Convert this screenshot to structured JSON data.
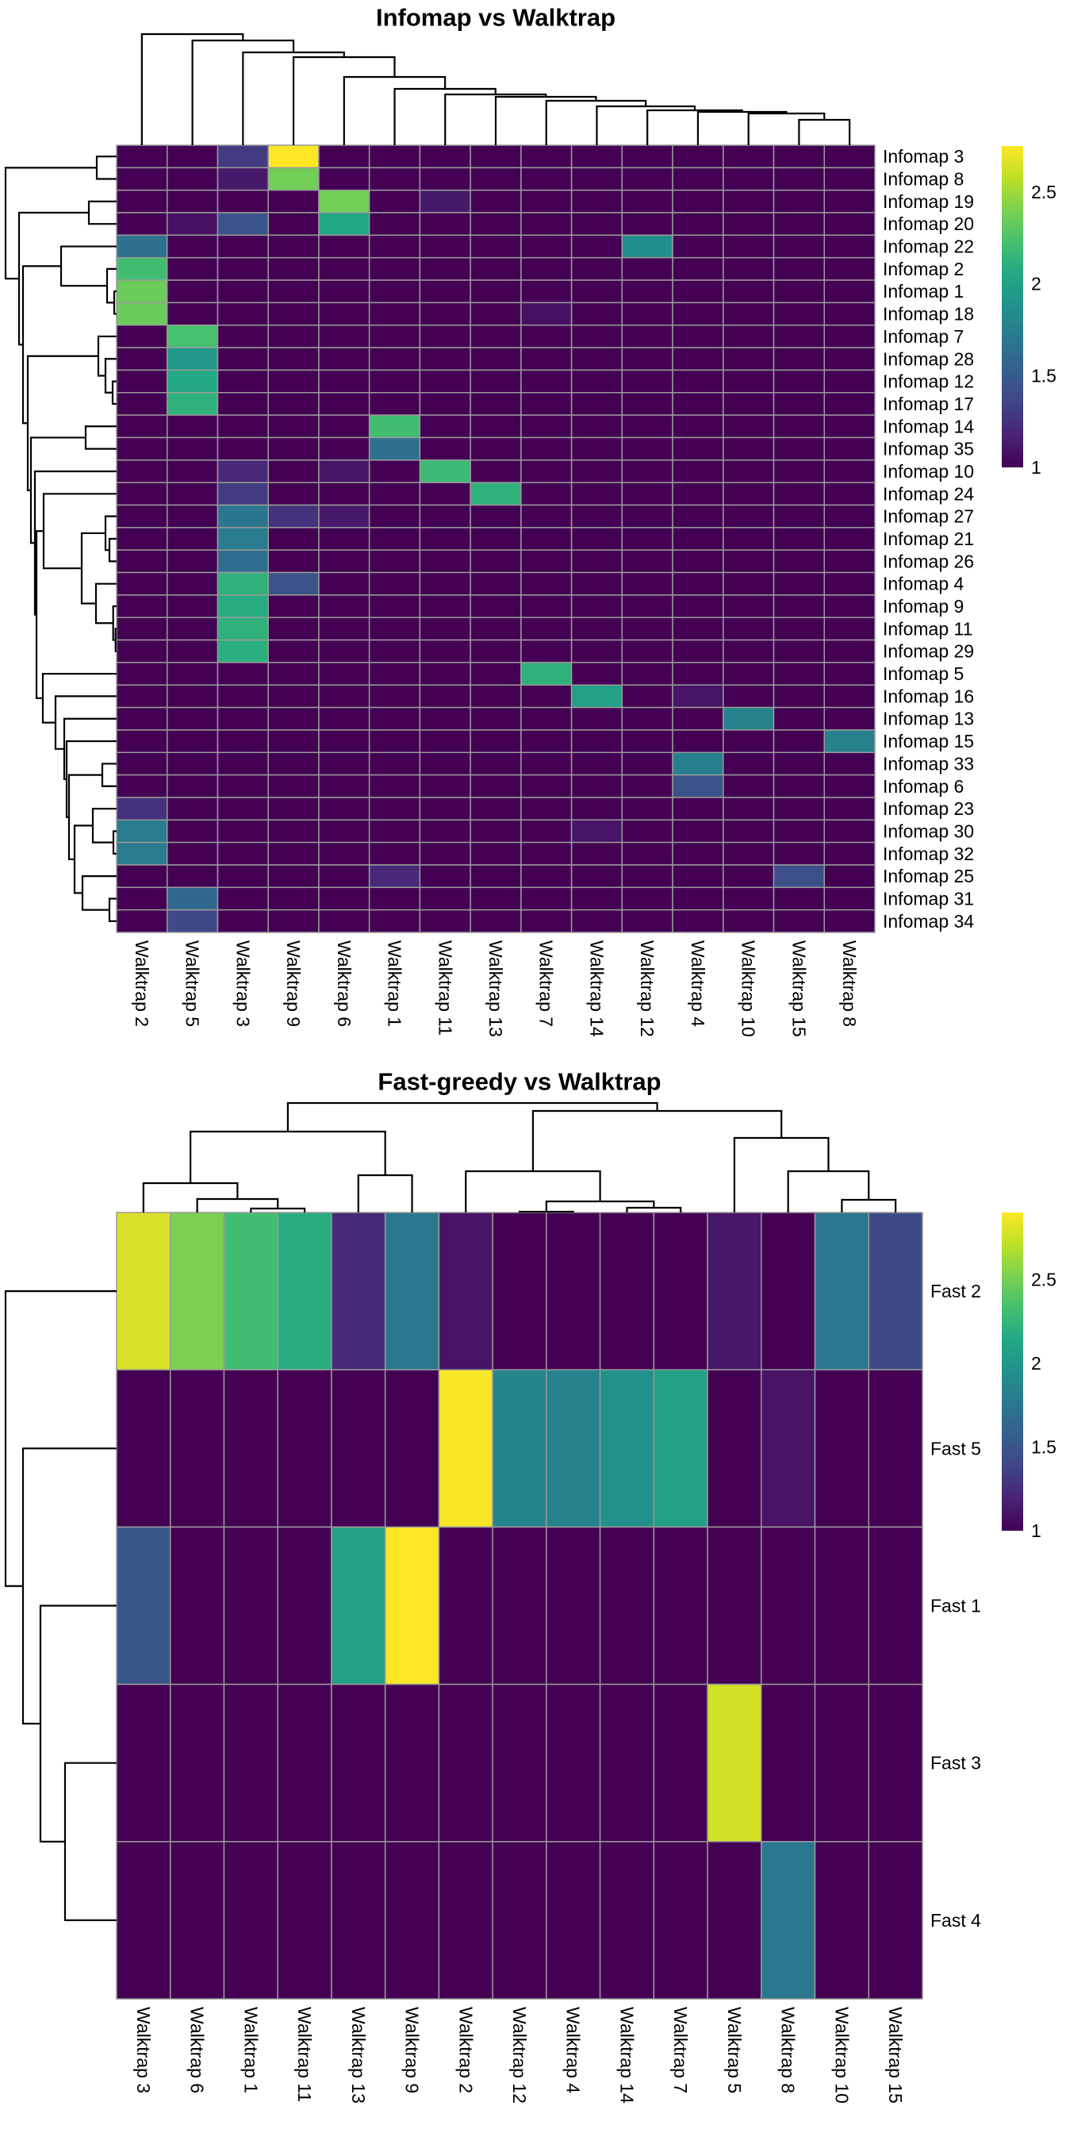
{
  "chart_data": [
    {
      "type": "heatmap",
      "title": "Infomap vs Walktrap",
      "rows": [
        "Infomap 3",
        "Infomap 8",
        "Infomap 19",
        "Infomap 20",
        "Infomap 22",
        "Infomap 2",
        "Infomap 1",
        "Infomap 18",
        "Infomap 7",
        "Infomap 28",
        "Infomap 12",
        "Infomap 17",
        "Infomap 14",
        "Infomap 35",
        "Infomap 10",
        "Infomap 24",
        "Infomap 27",
        "Infomap 21",
        "Infomap 26",
        "Infomap 4",
        "Infomap 9",
        "Infomap 11",
        "Infomap 29",
        "Infomap 5",
        "Infomap 16",
        "Infomap 13",
        "Infomap 15",
        "Infomap 33",
        "Infomap 6",
        "Infomap 23",
        "Infomap 30",
        "Infomap 32",
        "Infomap 25",
        "Infomap 31",
        "Infomap 34"
      ],
      "cols": [
        "Walktrap 2",
        "Walktrap 5",
        "Walktrap 3",
        "Walktrap 9",
        "Walktrap 6",
        "Walktrap 1",
        "Walktrap 11",
        "Walktrap 13",
        "Walktrap 7",
        "Walktrap 14",
        "Walktrap 12",
        "Walktrap 4",
        "Walktrap 10",
        "Walktrap 15",
        "Walktrap 8"
      ],
      "values": [
        [
          1,
          1,
          1.3,
          2.75,
          1,
          1,
          1,
          1,
          1,
          1,
          1,
          1,
          1,
          1,
          1
        ],
        [
          1,
          1,
          1.12,
          2.37,
          1,
          1,
          1,
          1,
          1,
          1,
          1,
          1,
          1,
          1,
          1
        ],
        [
          1,
          1,
          1,
          1,
          2.37,
          1,
          1.12,
          1,
          1,
          1,
          1,
          1,
          1,
          1,
          1
        ],
        [
          1,
          1.08,
          1.45,
          1,
          2.05,
          1,
          1,
          1,
          1,
          1,
          1,
          1,
          1,
          1,
          1
        ],
        [
          1.65,
          1,
          1,
          1,
          1,
          1,
          1,
          1,
          1,
          1,
          1.87,
          1,
          1,
          1,
          1
        ],
        [
          2.21,
          1,
          1,
          1,
          1,
          1,
          1,
          1,
          1,
          1,
          1,
          1,
          1,
          1,
          1
        ],
        [
          2.35,
          1,
          1,
          1,
          1,
          1,
          1,
          1,
          1,
          1,
          1,
          1,
          1,
          1,
          1
        ],
        [
          2.35,
          1,
          1,
          1,
          1,
          1,
          1,
          1,
          1.08,
          1,
          1,
          1,
          1,
          1,
          1
        ],
        [
          1,
          2.23,
          1,
          1,
          1,
          1,
          1,
          1,
          1,
          1,
          1,
          1,
          1,
          1,
          1
        ],
        [
          1,
          1.92,
          1,
          1,
          1,
          1,
          1,
          1,
          1,
          1,
          1,
          1,
          1,
          1,
          1
        ],
        [
          1,
          2.05,
          1,
          1,
          1,
          1,
          1,
          1,
          1,
          1,
          1,
          1,
          1,
          1,
          1
        ],
        [
          1,
          2.12,
          1,
          1,
          1,
          1,
          1,
          1,
          1,
          1,
          1,
          1,
          1,
          1,
          1
        ],
        [
          1,
          1,
          1,
          1,
          1,
          2.21,
          1,
          1,
          1,
          1,
          1,
          1,
          1,
          1,
          1
        ],
        [
          1,
          1,
          1,
          1,
          1,
          1.65,
          1,
          1,
          1,
          1,
          1,
          1,
          1,
          1,
          1
        ],
        [
          1,
          1,
          1.2,
          1,
          1.1,
          1,
          2.18,
          1,
          1,
          1,
          1,
          1,
          1,
          1,
          1
        ],
        [
          1,
          1,
          1.3,
          1,
          1,
          1,
          1,
          2.12,
          1,
          1,
          1,
          1,
          1,
          1,
          1
        ],
        [
          1,
          1,
          1.68,
          1.25,
          1.12,
          1,
          1,
          1,
          1,
          1,
          1,
          1,
          1,
          1,
          1
        ],
        [
          1,
          1,
          1.72,
          1,
          1,
          1,
          1,
          1,
          1,
          1,
          1,
          1,
          1,
          1,
          1
        ],
        [
          1,
          1,
          1.62,
          1,
          1,
          1,
          1,
          1,
          1,
          1,
          1,
          1,
          1,
          1,
          1
        ],
        [
          1,
          1,
          2.12,
          1.45,
          1,
          1,
          1,
          1,
          1,
          1,
          1,
          1,
          1,
          1,
          1
        ],
        [
          1,
          1,
          2.08,
          1,
          1,
          1,
          1,
          1,
          1,
          1,
          1,
          1,
          1,
          1,
          1
        ],
        [
          1,
          1,
          2.12,
          1,
          1,
          1,
          1,
          1,
          1,
          1,
          1,
          1,
          1,
          1,
          1
        ],
        [
          1,
          1,
          2.1,
          1,
          1,
          1,
          1,
          1,
          1,
          1,
          1,
          1,
          1,
          1,
          1
        ],
        [
          1,
          1,
          1,
          1,
          1,
          1,
          1,
          1,
          2.12,
          1,
          1,
          1,
          1,
          1,
          1
        ],
        [
          1,
          1,
          1,
          1,
          1,
          1,
          1,
          1,
          1,
          2.0,
          1,
          1.1,
          1,
          1,
          1
        ],
        [
          1,
          1,
          1,
          1,
          1,
          1,
          1,
          1,
          1,
          1,
          1,
          1,
          1.78,
          1,
          1
        ],
        [
          1,
          1,
          1,
          1,
          1,
          1,
          1,
          1,
          1,
          1,
          1,
          1,
          1,
          1,
          1.78
        ],
        [
          1,
          1,
          1,
          1,
          1,
          1,
          1,
          1,
          1,
          1,
          1,
          1.75,
          1,
          1,
          1
        ],
        [
          1,
          1,
          1,
          1,
          1,
          1,
          1,
          1,
          1,
          1,
          1,
          1.45,
          1,
          1,
          1
        ],
        [
          1.25,
          1,
          1,
          1,
          1,
          1,
          1,
          1,
          1,
          1,
          1,
          1,
          1,
          1,
          1
        ],
        [
          1.72,
          1,
          1,
          1,
          1,
          1,
          1,
          1,
          1,
          1.1,
          1,
          1,
          1,
          1,
          1
        ],
        [
          1.72,
          1,
          1,
          1,
          1,
          1,
          1,
          1,
          1,
          1,
          1,
          1,
          1,
          1,
          1
        ],
        [
          1,
          1,
          1,
          1,
          1,
          1.2,
          1,
          1,
          1,
          1,
          1,
          1,
          1,
          1.42,
          1
        ],
        [
          1,
          1.58,
          1,
          1,
          1,
          1,
          1,
          1,
          1,
          1,
          1,
          1,
          1,
          1,
          1
        ],
        [
          1,
          1.38,
          1,
          1,
          1,
          1,
          1,
          1,
          1,
          1,
          1,
          1,
          1,
          1,
          1
        ]
      ],
      "color_range": [
        1,
        2.75
      ],
      "legend_ticks": [
        "1",
        "1.5",
        "2",
        "2.5"
      ],
      "legend_tick_values": [
        1,
        1.5,
        2,
        2.5
      ],
      "colormap": "viridis",
      "row_dendrogram": [
        [
          0,
          1,
          25
        ],
        [
          [
            2,
            3,
            35
          ],
          [
            [
              4,
              [
                5,
                [
                  6,
                  7,
                  3
                ],
                12
              ],
              70
            ],
            [
              [
                8,
                [
                  9,
                  [
                    10,
                    11,
                    5
                  ],
                  14
                ],
                23
              ],
              [
                [
                  12,
                  13,
                  39
                ],
                [
                  14,
                  [
                    [
                      15,
                      [
                        [
                          16,
                          [
                            17,
                            18,
                            9
                          ],
                          14
                        ],
                        [
                          19,
                          [
                            20,
                            [
                              21,
                              22,
                              1.3
                            ],
                            4.3
                          ],
                          26
                        ],
                        44
                      ],
                      92
                    ],
                    [
                      23,
                      [
                        24,
                        [
                          25,
                          [
                            26,
                            [
                              [
                                27,
                                28,
                                18
                              ],
                              [
                                [
                                  29,
                                  [
                                    30,
                                    31,
                                    4
                                  ],
                                  30
                                ],
                                [
                                  32,
                                  [
                                    33,
                                    34,
                                    9
                                  ],
                                  43
                                ],
                                53
                              ],
                              60
                            ],
                            63
                          ],
                          66
                        ],
                        77
                      ],
                      93
                    ],
                    101
                  ],
                  103
                ],
                108
              ],
              112
            ],
            118
          ],
          123
        ],
        140
      ],
      "col_dendrogram": [
        0,
        [
          1,
          [
            2,
            [
              3,
              [
                4,
                [
                  5,
                  [
                    6,
                    [
                      7,
                      [
                        8,
                        [
                          9,
                          [
                            10,
                            [
                              11,
                              [
                                12,
                                [
                                  13,
                                  14,
                                  32
                                ],
                                40
                              ],
                              42
                            ],
                            44
                          ],
                          49
                        ],
                        56
                      ],
                      61
                    ],
                    64
                  ],
                  71
                ],
                86
              ],
              111
            ],
            117
          ],
          132
        ],
        140
      ]
    },
    {
      "type": "heatmap",
      "title": "Fast-greedy vs Walktrap",
      "rows": [
        "Fast 2",
        "Fast 5",
        "Fast 1",
        "Fast 3",
        "Fast 4"
      ],
      "cols": [
        "Walktrap 3",
        "Walktrap 6",
        "Walktrap 1",
        "Walktrap 11",
        "Walktrap 13",
        "Walktrap 9",
        "Walktrap 2",
        "Walktrap 12",
        "Walktrap 4",
        "Walktrap 14",
        "Walktrap 7",
        "Walktrap 5",
        "Walktrap 8",
        "Walktrap 10",
        "Walktrap 15"
      ],
      "values": [
        [
          2.79,
          2.52,
          2.31,
          2.18,
          1.23,
          1.76,
          1.1,
          1,
          1,
          1,
          1,
          1.12,
          1,
          1.76,
          1.42
        ],
        [
          1,
          1,
          1,
          1,
          1,
          1,
          2.88,
          1.86,
          1.84,
          1.95,
          2.08,
          1,
          1.1,
          1,
          1
        ],
        [
          1.51,
          1,
          1,
          1,
          2.08,
          2.9,
          1,
          1,
          1,
          1,
          1,
          1,
          1,
          1,
          1
        ],
        [
          1,
          1,
          1,
          1,
          1,
          1,
          1,
          1,
          1,
          1,
          1,
          2.77,
          1,
          1,
          1
        ],
        [
          1,
          1,
          1,
          1,
          1,
          1,
          1,
          1,
          1,
          1,
          1,
          1,
          1.76,
          1,
          1
        ]
      ],
      "color_range": [
        1,
        2.9
      ],
      "legend_ticks": [
        "1",
        "1.5",
        "2",
        "2.5"
      ],
      "legend_tick_values": [
        1,
        1.5,
        2,
        2.5
      ],
      "colormap": "viridis",
      "row_dendrogram": [
        0,
        [
          1,
          [
            2,
            [
              3,
              4,
              65
            ],
            96
          ],
          118
        ],
        140
      ],
      "col_dendrogram": [
        [
          [
            0,
            [
              1,
              [
                2,
                3,
                5
              ],
              17
            ],
            37
          ],
          [
            4,
            5,
            47
          ],
          102
        ],
        [
          [
            6,
            [
              [
                7,
                8,
                1
              ],
              [
                9,
                10,
                6
              ],
              14
            ],
            52
          ],
          [
            11,
            [
              12,
              [
                13,
                14,
                16
              ],
              52
            ],
            94
          ],
          128
        ],
        138
      ]
    }
  ]
}
